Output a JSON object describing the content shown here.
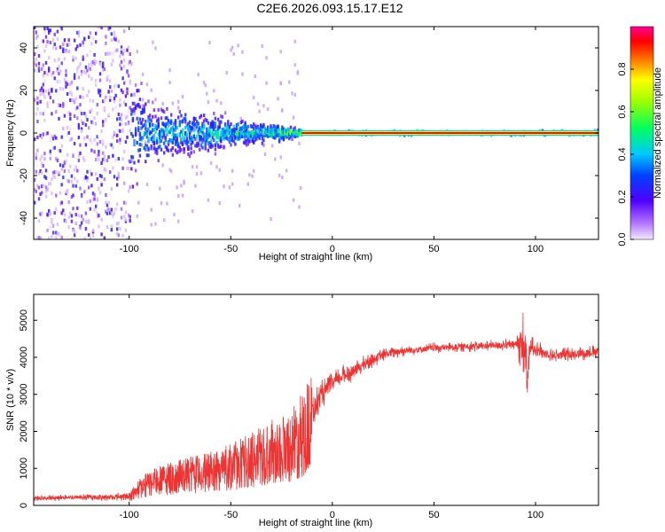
{
  "title": "C2E6.2026.093.15.17.E12",
  "chart_data": [
    {
      "type": "heatmap",
      "xlabel": "Height of straight line (km)",
      "ylabel": "Frequency (Hz)",
      "xlim": [
        -147,
        131
      ],
      "ylim": [
        -50,
        50
      ],
      "xticks": [
        -100,
        -50,
        0,
        50,
        100
      ],
      "yticks": [
        40,
        20,
        0,
        -20,
        -40
      ],
      "carrier_frequency": 0,
      "colorbar": {
        "label": "Normalized spectral amplitude",
        "range": [
          0,
          1
        ],
        "ticks": [
          0.0,
          0.2,
          0.4,
          0.6,
          0.8
        ],
        "colormap": [
          "#e8d8ff",
          "#9a40ff",
          "#2a00e0",
          "#00c8ff",
          "#00ff40",
          "#ffff00",
          "#ff0000",
          "#ff0090"
        ]
      },
      "profile": [
        {
          "x": -147,
          "spread_hz": 50,
          "peak": 0.3
        },
        {
          "x": -100,
          "spread_hz": 48,
          "peak": 0.35
        },
        {
          "x": -90,
          "spread_hz": 20,
          "peak": 0.45
        },
        {
          "x": -60,
          "spread_hz": 14,
          "peak": 0.5
        },
        {
          "x": -40,
          "spread_hz": 8,
          "peak": 0.55
        },
        {
          "x": -20,
          "spread_hz": 4,
          "peak": 0.65
        },
        {
          "x": -15,
          "spread_hz": 1.5,
          "peak": 0.95
        },
        {
          "x": 131,
          "spread_hz": 1.5,
          "peak": 0.95
        }
      ]
    },
    {
      "type": "line",
      "xlabel": "Height of straight line (km)",
      "ylabel": "SNR (10 * v/v)",
      "xlim": [
        -147,
        131
      ],
      "ylim": [
        0,
        5700
      ],
      "xticks": [
        -100,
        -50,
        0,
        50,
        100
      ],
      "yticks": [
        0,
        1000,
        2000,
        3000,
        4000,
        5000
      ],
      "color": "#ee3333",
      "series": [
        {
          "x": [
            -147,
            -130,
            -110,
            -100,
            -95,
            -90,
            -80,
            -70,
            -60,
            -50,
            -40,
            -30,
            -20,
            -15,
            -10,
            -5,
            0,
            5,
            10,
            15,
            20,
            25,
            30,
            40,
            50,
            60,
            70,
            80,
            90,
            93,
            95,
            96,
            97,
            98,
            100,
            105,
            110,
            120,
            131
          ],
          "y": [
            180,
            220,
            220,
            250,
            500,
            650,
            800,
            900,
            1000,
            1150,
            1350,
            1600,
            1800,
            2100,
            2500,
            3000,
            3300,
            3500,
            3600,
            3800,
            3950,
            4050,
            4150,
            4200,
            4250,
            4280,
            4300,
            4320,
            4350,
            4400,
            4200,
            3300,
            4100,
            4300,
            4250,
            4100,
            4050,
            4100,
            4150
          ],
          "noise": [
            80,
            90,
            100,
            150,
            500,
            600,
            700,
            800,
            900,
            1000,
            1000,
            1000,
            900,
            800,
            600,
            400,
            300,
            300,
            280,
            250,
            220,
            200,
            180,
            160,
            150,
            150,
            160,
            160,
            180,
            800,
            1200,
            800,
            500,
            300,
            250,
            200,
            200,
            200,
            200
          ]
        }
      ]
    }
  ]
}
